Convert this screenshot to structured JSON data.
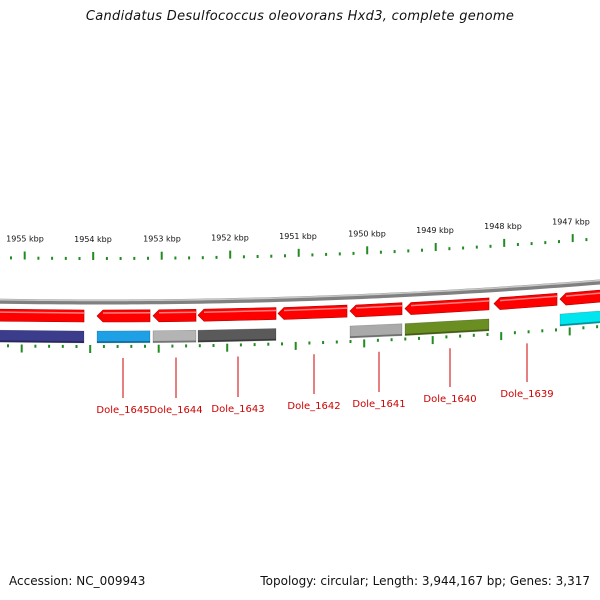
{
  "title": "Candidatus Desulfococcus oleovorans Hxd3, complete genome",
  "footer": {
    "accession": "Accession: NC_009943",
    "summary": "Topology: circular; Length: 3,944,167 bp; Genes: 3,317"
  },
  "colors": {
    "backbone": "#808080",
    "forward_strand": "#ff0000",
    "tick_marks": "#228b22",
    "gene_label": "#cc0000"
  },
  "scale_labels": [
    "1955 kbp",
    "1954 kbp",
    "1953 kbp",
    "1952 kbp",
    "1951 kbp",
    "1950 kbp",
    "1949 kbp",
    "1948 kbp",
    "1947 kbp"
  ],
  "genes": [
    {
      "label": "",
      "feature_color": "#3c3c8c"
    },
    {
      "label": "Dole_1645",
      "feature_color": "#1ea0e6"
    },
    {
      "label": "Dole_1644",
      "feature_color": "#b4b4b4"
    },
    {
      "label": "Dole_1643",
      "feature_color": "#5a5a5a"
    },
    {
      "label": "Dole_1642",
      "feature_color": ""
    },
    {
      "label": "Dole_1641",
      "feature_color": "#aaaaaa"
    },
    {
      "label": "Dole_1640",
      "feature_color": "#6b8e23"
    },
    {
      "label": "Dole_1639",
      "feature_color": ""
    },
    {
      "label": "",
      "feature_color": "#00e5ee"
    }
  ]
}
